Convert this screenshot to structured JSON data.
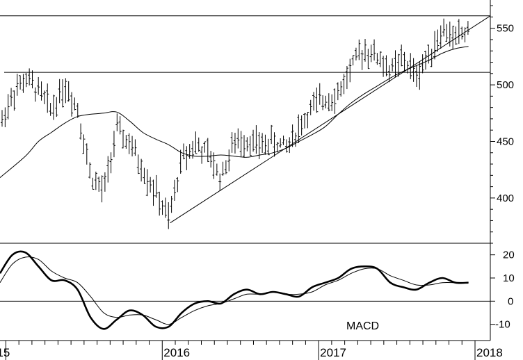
{
  "chart_data": [
    {
      "type": "bar",
      "subtype": "ohlc",
      "title": "",
      "ylim": [
        360,
        575
      ],
      "yticks": [
        400,
        450,
        500,
        550
      ],
      "x_range": [
        "2014-12",
        "2018-01"
      ],
      "x_tick_labels": [
        "15",
        "2016",
        "2017",
        "2018"
      ],
      "x_ticks": [
        "2015-01",
        "2016-01",
        "2017-01",
        "2018-01"
      ],
      "resistance_level": 511,
      "upper_channel_level": 561,
      "trendline": {
        "x": [
          "2016-01",
          "2017-12"
        ],
        "y": [
          378,
          561
        ]
      },
      "weekly_close": {
        "x": [
          "2014-12",
          "2015-01",
          "2015-02",
          "2015-03",
          "2015-04",
          "2015-05",
          "2015-06",
          "2015-07",
          "2015-08",
          "2015-09",
          "2015-10",
          "2015-11",
          "2015-12",
          "2016-01",
          "2016-02",
          "2016-03",
          "2016-04",
          "2016-05",
          "2016-06",
          "2016-07",
          "2016-08",
          "2016-09",
          "2016-10",
          "2016-11",
          "2016-12",
          "2017-01",
          "2017-02",
          "2017-03",
          "2017-04",
          "2017-05",
          "2017-06",
          "2017-07",
          "2017-08",
          "2017-09",
          "2017-10",
          "2017-11",
          "2017-12"
        ],
        "y": [
          462,
          492,
          505,
          495,
          478,
          500,
          480,
          420,
          405,
          460,
          448,
          425,
          405,
          380,
          435,
          448,
          438,
          418,
          448,
          452,
          446,
          450,
          445,
          462,
          480,
          488,
          492,
          515,
          532,
          525,
          512,
          522,
          508,
          528,
          548,
          542,
          548
        ]
      },
      "moving_average": {
        "x": [
          "2014-12",
          "2015-02",
          "2015-03",
          "2015-04",
          "2015-05",
          "2015-06",
          "2015-07",
          "2015-08",
          "2015-09",
          "2015-10",
          "2015-11",
          "2015-12",
          "2016-01",
          "2016-02",
          "2016-03",
          "2016-04",
          "2016-05",
          "2016-06",
          "2016-07",
          "2016-08",
          "2016-09",
          "2016-10",
          "2016-11",
          "2016-12",
          "2017-01",
          "2017-02",
          "2017-03",
          "2017-04",
          "2017-05",
          "2017-06",
          "2017-07",
          "2017-08",
          "2017-09",
          "2017-10",
          "2017-11",
          "2017-12"
        ],
        "y": [
          418,
          437,
          450,
          458,
          466,
          472,
          474,
          475,
          476,
          468,
          458,
          452,
          447,
          440,
          437,
          437,
          438,
          437,
          436,
          438,
          440,
          444,
          450,
          456,
          463,
          474,
          484,
          492,
          499,
          506,
          512,
          517,
          522,
          528,
          532,
          534
        ]
      }
    },
    {
      "type": "line",
      "ylim": [
        -17,
        25
      ],
      "yticks": [
        -10,
        0,
        10,
        20
      ],
      "zero_line": true,
      "annotation": "MACD",
      "series": [
        {
          "style": "thick",
          "x": [
            "2014-12",
            "2015-01",
            "2015-02",
            "2015-03",
            "2015-04",
            "2015-05",
            "2015-06",
            "2015-07",
            "2015-08",
            "2015-09",
            "2015-10",
            "2015-11",
            "2015-12",
            "2016-01",
            "2016-02",
            "2016-03",
            "2016-04",
            "2016-05",
            "2016-06",
            "2016-07",
            "2016-08",
            "2016-09",
            "2016-10",
            "2016-11",
            "2016-12",
            "2017-01",
            "2017-02",
            "2017-03",
            "2017-04",
            "2017-05",
            "2017-06",
            "2017-07",
            "2017-08",
            "2017-09",
            "2017-10",
            "2017-11",
            "2017-12"
          ],
          "y": [
            12,
            20,
            21,
            15,
            9,
            9,
            5,
            -7,
            -12,
            -8,
            -4,
            -6,
            -11,
            -11,
            -5,
            -1,
            0,
            -1,
            3,
            5,
            3,
            4,
            3,
            2,
            6,
            8,
            10,
            14,
            15,
            14,
            8,
            6,
            5,
            8,
            10,
            8,
            8
          ]
        },
        {
          "style": "thin",
          "x": [
            "2014-12",
            "2015-01",
            "2015-02",
            "2015-03",
            "2015-04",
            "2015-05",
            "2015-06",
            "2015-07",
            "2015-08",
            "2015-09",
            "2015-10",
            "2015-11",
            "2015-12",
            "2016-01",
            "2016-02",
            "2016-03",
            "2016-04",
            "2016-05",
            "2016-06",
            "2016-07",
            "2016-08",
            "2016-09",
            "2016-10",
            "2016-11",
            "2016-12",
            "2017-01",
            "2017-02",
            "2017-03",
            "2017-04",
            "2017-05",
            "2017-06",
            "2017-07",
            "2017-08",
            "2017-09",
            "2017-10",
            "2017-11",
            "2017-12"
          ],
          "y": [
            8,
            16,
            19,
            18,
            13,
            10,
            8,
            2,
            -5,
            -7,
            -6,
            -6,
            -8,
            -10,
            -7,
            -4,
            -2,
            -1,
            1,
            3,
            3,
            4,
            3,
            3,
            4,
            7,
            9,
            12,
            14,
            14,
            11,
            9,
            7,
            7,
            8,
            8,
            8
          ]
        }
      ]
    }
  ]
}
